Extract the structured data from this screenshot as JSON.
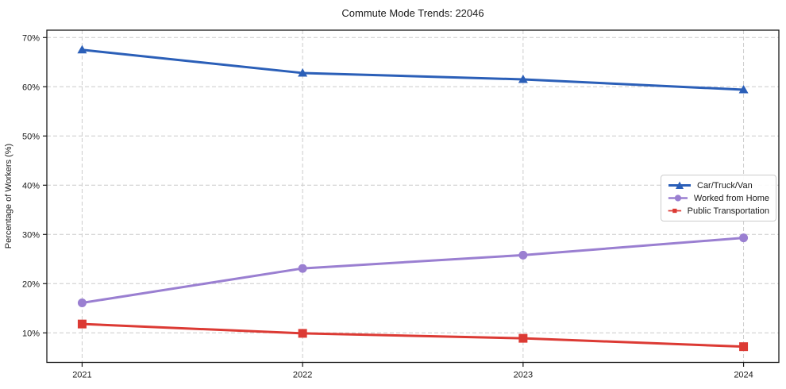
{
  "title": "Commute Mode Trends: 22046",
  "axes": {
    "ylabel": "Percentage of Workers (%)",
    "xlabel": "",
    "ytick_labels": [
      "10%",
      "20%",
      "30%",
      "40%",
      "50%",
      "60%",
      "70%"
    ],
    "ytick_values": [
      10,
      20,
      30,
      40,
      50,
      60,
      70
    ],
    "xtick_labels": [
      "2021",
      "2022",
      "2023",
      "2024"
    ],
    "xtick_values": [
      2021,
      2022,
      2023,
      2024
    ]
  },
  "chart_data": {
    "type": "line",
    "title": "Commute Mode Trends: 22046",
    "xlabel": "",
    "ylabel": "Percentage of Workers (%)",
    "x": [
      2021,
      2022,
      2023,
      2024
    ],
    "series": [
      {
        "name": "Car/Truck/Van",
        "color": "#2b5fb8",
        "marker": "triangle",
        "values": [
          67.5,
          62.8,
          61.5,
          59.4
        ]
      },
      {
        "name": "Worked from Home",
        "color": "#9a7fd1",
        "marker": "circle",
        "values": [
          16.1,
          23.1,
          25.8,
          29.3
        ]
      },
      {
        "name": "Public Transportation",
        "color": "#dc3a34",
        "marker": "square",
        "values": [
          11.8,
          9.9,
          8.9,
          7.2
        ]
      }
    ],
    "ylim": [
      4,
      71.5
    ],
    "xlim": [
      2020.84,
      2024.16
    ],
    "grid": true,
    "grid_style": "dashed",
    "grid_color": "#cccccc",
    "spine_color": "#1a1a1a",
    "legend_position": "center right",
    "line_width": 3
  }
}
